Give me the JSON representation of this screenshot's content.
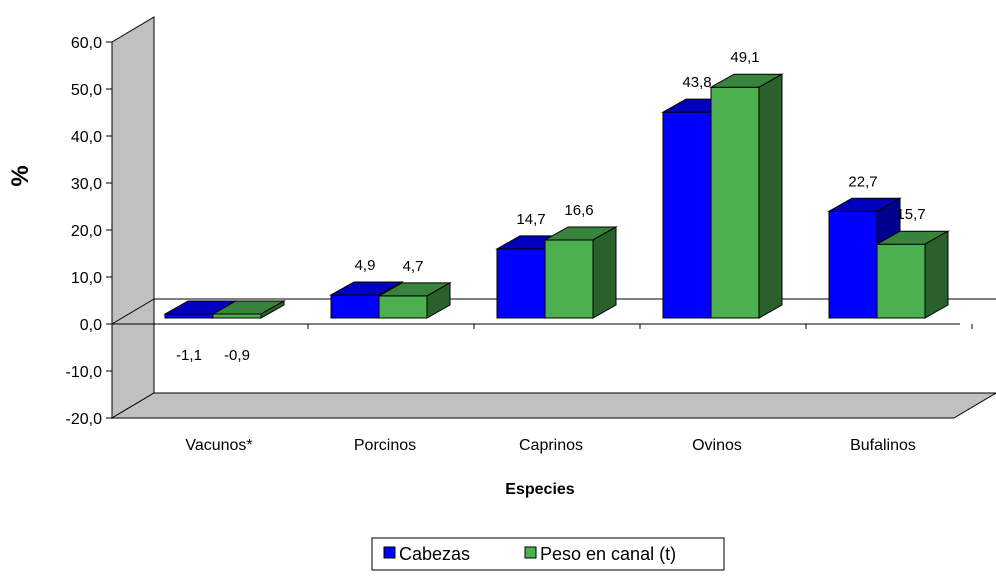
{
  "chart_data": {
    "type": "bar",
    "title": "",
    "xlabel": "Especies",
    "ylabel": "%",
    "categories": [
      "Vacunos*",
      "Porcinos",
      "Caprinos",
      "Ovinos",
      "Bufalinos"
    ],
    "series": [
      {
        "name": "Cabezas",
        "color": "#0000ff",
        "values": [
          -1.1,
          4.9,
          14.7,
          43.8,
          22.7
        ],
        "labels": [
          "-1,1",
          "4,9",
          "14,7",
          "43,8",
          "22,7"
        ]
      },
      {
        "name": "Peso en canal (t)",
        "color": "#4caf50",
        "values": [
          -0.9,
          4.7,
          16.6,
          49.1,
          15.7
        ],
        "labels": [
          "-0,9",
          "4,7",
          "16,6",
          "49,1",
          "15,7"
        ]
      }
    ],
    "ylim": [
      -20,
      60
    ],
    "yticks": [
      -20,
      -10,
      0,
      10,
      20,
      30,
      40,
      50,
      60
    ],
    "ytick_labels": [
      "-20,0",
      "-10,0",
      "0,0",
      "10,0",
      "20,0",
      "30,0",
      "40,0",
      "50,0",
      "60,0"
    ],
    "grid": false,
    "legend": "bottom",
    "style": "3d-clustered-column"
  }
}
